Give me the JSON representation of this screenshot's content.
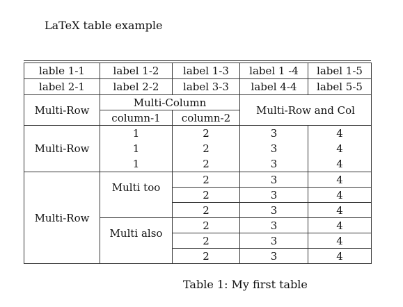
{
  "document": {
    "title": "LaTeX table example",
    "caption": "Table 1: My first table"
  },
  "table": {
    "row1": [
      "lable 1-1",
      "label 1-2",
      "label 1-3",
      "label 1 -4",
      "label 1-5"
    ],
    "row2": [
      "label 2-1",
      "label 2-2",
      "label 3-3",
      "label 4-4",
      "label 5-5"
    ],
    "multirow_label": "Multi-Row",
    "multicolumn_label": "Multi-Column",
    "column1_label": "column-1",
    "column2_label": "column-2",
    "multirow_and_col_label": "Multi-Row and Col",
    "block1": {
      "label": "Multi-Row",
      "rows": [
        [
          "1",
          "2",
          "3",
          "4"
        ],
        [
          "1",
          "2",
          "3",
          "4"
        ],
        [
          "1",
          "2",
          "3",
          "4"
        ]
      ]
    },
    "block2": {
      "label": "Multi-Row",
      "sub1_label": "Multi too",
      "sub2_label": "Multi also",
      "rows": [
        [
          "2",
          "3",
          "4"
        ],
        [
          "2",
          "3",
          "4"
        ],
        [
          "2",
          "3",
          "4"
        ],
        [
          "2",
          "3",
          "4"
        ],
        [
          "2",
          "3",
          "4"
        ],
        [
          "2",
          "3",
          "4"
        ]
      ]
    }
  }
}
